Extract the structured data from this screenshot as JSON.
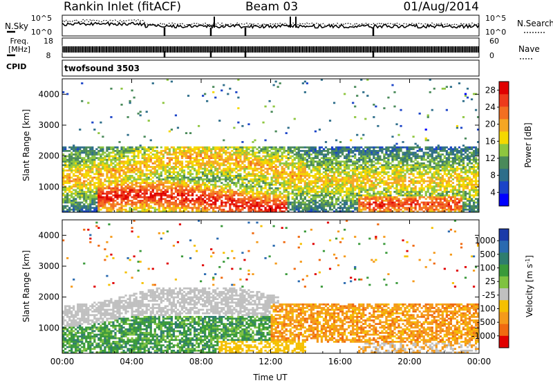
{
  "header": {
    "station": "Rankin Inlet (fitACF)",
    "beam": "Beam 03",
    "date": "01/Aug/2014"
  },
  "noise_panel": {
    "left_label": "N.Sky",
    "right_label": "N.Search",
    "left_ticks": [
      "10^5",
      "10^0"
    ],
    "right_ticks": [
      "10^5",
      "10^0"
    ]
  },
  "freq_panel": {
    "left_label_1": "Freq.",
    "left_label_2": "[MHz]",
    "right_label": "Nave",
    "left_ticks": [
      "18",
      "8"
    ],
    "right_ticks": [
      "60",
      "0"
    ]
  },
  "cpid": {
    "label": "CPID",
    "value": "twofsound 3503"
  },
  "chart_data": [
    {
      "type": "heatmap",
      "quantity": "Power",
      "ylabel": "Slant Range [km]",
      "yticks": [
        1000,
        2000,
        3000,
        4000
      ],
      "ylim": [
        180,
        4500
      ],
      "xlim_hours": [
        0,
        24
      ],
      "xticks": [
        "00:00",
        "04:00",
        "08:00",
        "12:00",
        "16:00",
        "20:00",
        "00:00"
      ],
      "colorbar": {
        "label": "Power [dB]",
        "ticks": [
          "4",
          "8",
          "12",
          "16",
          "20",
          "24",
          "28"
        ],
        "levels": [
          {
            "color": "#0000ff"
          },
          {
            "color": "#1b44c8"
          },
          {
            "color": "#2e6e8a"
          },
          {
            "color": "#4a8a5a"
          },
          {
            "color": "#8ec63f"
          },
          {
            "color": "#f5d800"
          },
          {
            "color": "#f5a623"
          },
          {
            "color": "#f36f21"
          },
          {
            "color": "#ee3b1b"
          },
          {
            "color": "#e00000"
          }
        ]
      }
    },
    {
      "type": "heatmap",
      "quantity": "Velocity",
      "ylabel": "Slant Range [km]",
      "yticks": [
        1000,
        2000,
        3000,
        4000
      ],
      "ylim": [
        180,
        4500
      ],
      "xlim_hours": [
        0,
        24
      ],
      "xticks": [
        "00:00",
        "04:00",
        "08:00",
        "12:00",
        "16:00",
        "20:00",
        "00:00"
      ],
      "xlabel": "Time UT",
      "colorbar": {
        "label_main": "Velocity  [m s",
        "label_sup": "-1",
        "label_end": "]",
        "ticks": [
          "1000",
          "500",
          "100",
          "25",
          "-25",
          "-100",
          "-500",
          "-1000"
        ],
        "levels": [
          {
            "color": "#1a3aa8"
          },
          {
            "color": "#2a6ab0"
          },
          {
            "color": "#2e7d6e"
          },
          {
            "color": "#3a9a3a"
          },
          {
            "color": "#7fc241"
          },
          {
            "color": "#c0c0c0"
          },
          {
            "color": "#f5c000"
          },
          {
            "color": "#f59a1a"
          },
          {
            "color": "#f06a10"
          },
          {
            "color": "#e00000"
          }
        ]
      }
    }
  ]
}
